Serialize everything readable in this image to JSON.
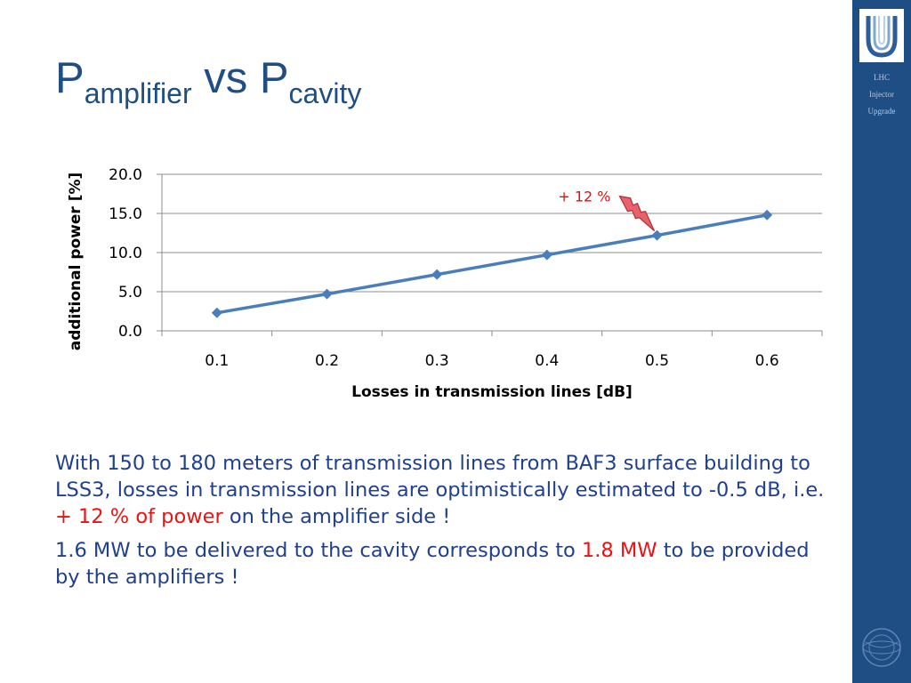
{
  "slide": {
    "title": {
      "main_p1": "P",
      "sub_1": "amplifier",
      "mid": " vs P",
      "sub_2": "cavity"
    },
    "brand_lines": [
      "LHC",
      "Injector",
      "Upgrade"
    ],
    "paragraphs": [
      {
        "parts": [
          {
            "text": "With 150 to 180 meters of transmission lines from BAF3 surface building to LSS3, losses in transmission lines are optimistically estimated to -0.5 dB, i.e. ",
            "highlight": false
          },
          {
            "text": "+ 12 % of power",
            "highlight": true
          },
          {
            "text": " on the amplifier side !",
            "highlight": false
          }
        ]
      },
      {
        "parts": [
          {
            "text": "1.6 MW to be delivered to the cavity corresponds to ",
            "highlight": false
          },
          {
            "text": "1.8 MW",
            "highlight": true
          },
          {
            "text": " to be provided by the amplifiers !",
            "highlight": false
          }
        ]
      }
    ],
    "colors": {
      "title": "#1f4e85",
      "body_text": "#1f3f8f",
      "highlight": "#ee1111",
      "side_band": "#1f4e85",
      "series": "#4a7ebb",
      "annotation_fill": "#e8626b"
    }
  },
  "chart_data": {
    "type": "line",
    "categories": [
      "0.1",
      "0.2",
      "0.3",
      "0.4",
      "0.5",
      "0.6"
    ],
    "series": [
      {
        "values": [
          2.3,
          4.7,
          7.2,
          9.7,
          12.2,
          14.8
        ],
        "marker": "diamond",
        "color": "#4a7ebb"
      }
    ],
    "xlabel": "Losses in transmission lines [dB]",
    "ylabel": "additional power [%]",
    "ylim": [
      0,
      20
    ],
    "yticks": [
      "0.0",
      "5.0",
      "10.0",
      "15.0",
      "20.0"
    ],
    "grid": true,
    "legend": "none",
    "annotation": {
      "text": "+ 12 %",
      "category": "0.5",
      "value": 12.2,
      "icon": "lightning-icon"
    }
  }
}
